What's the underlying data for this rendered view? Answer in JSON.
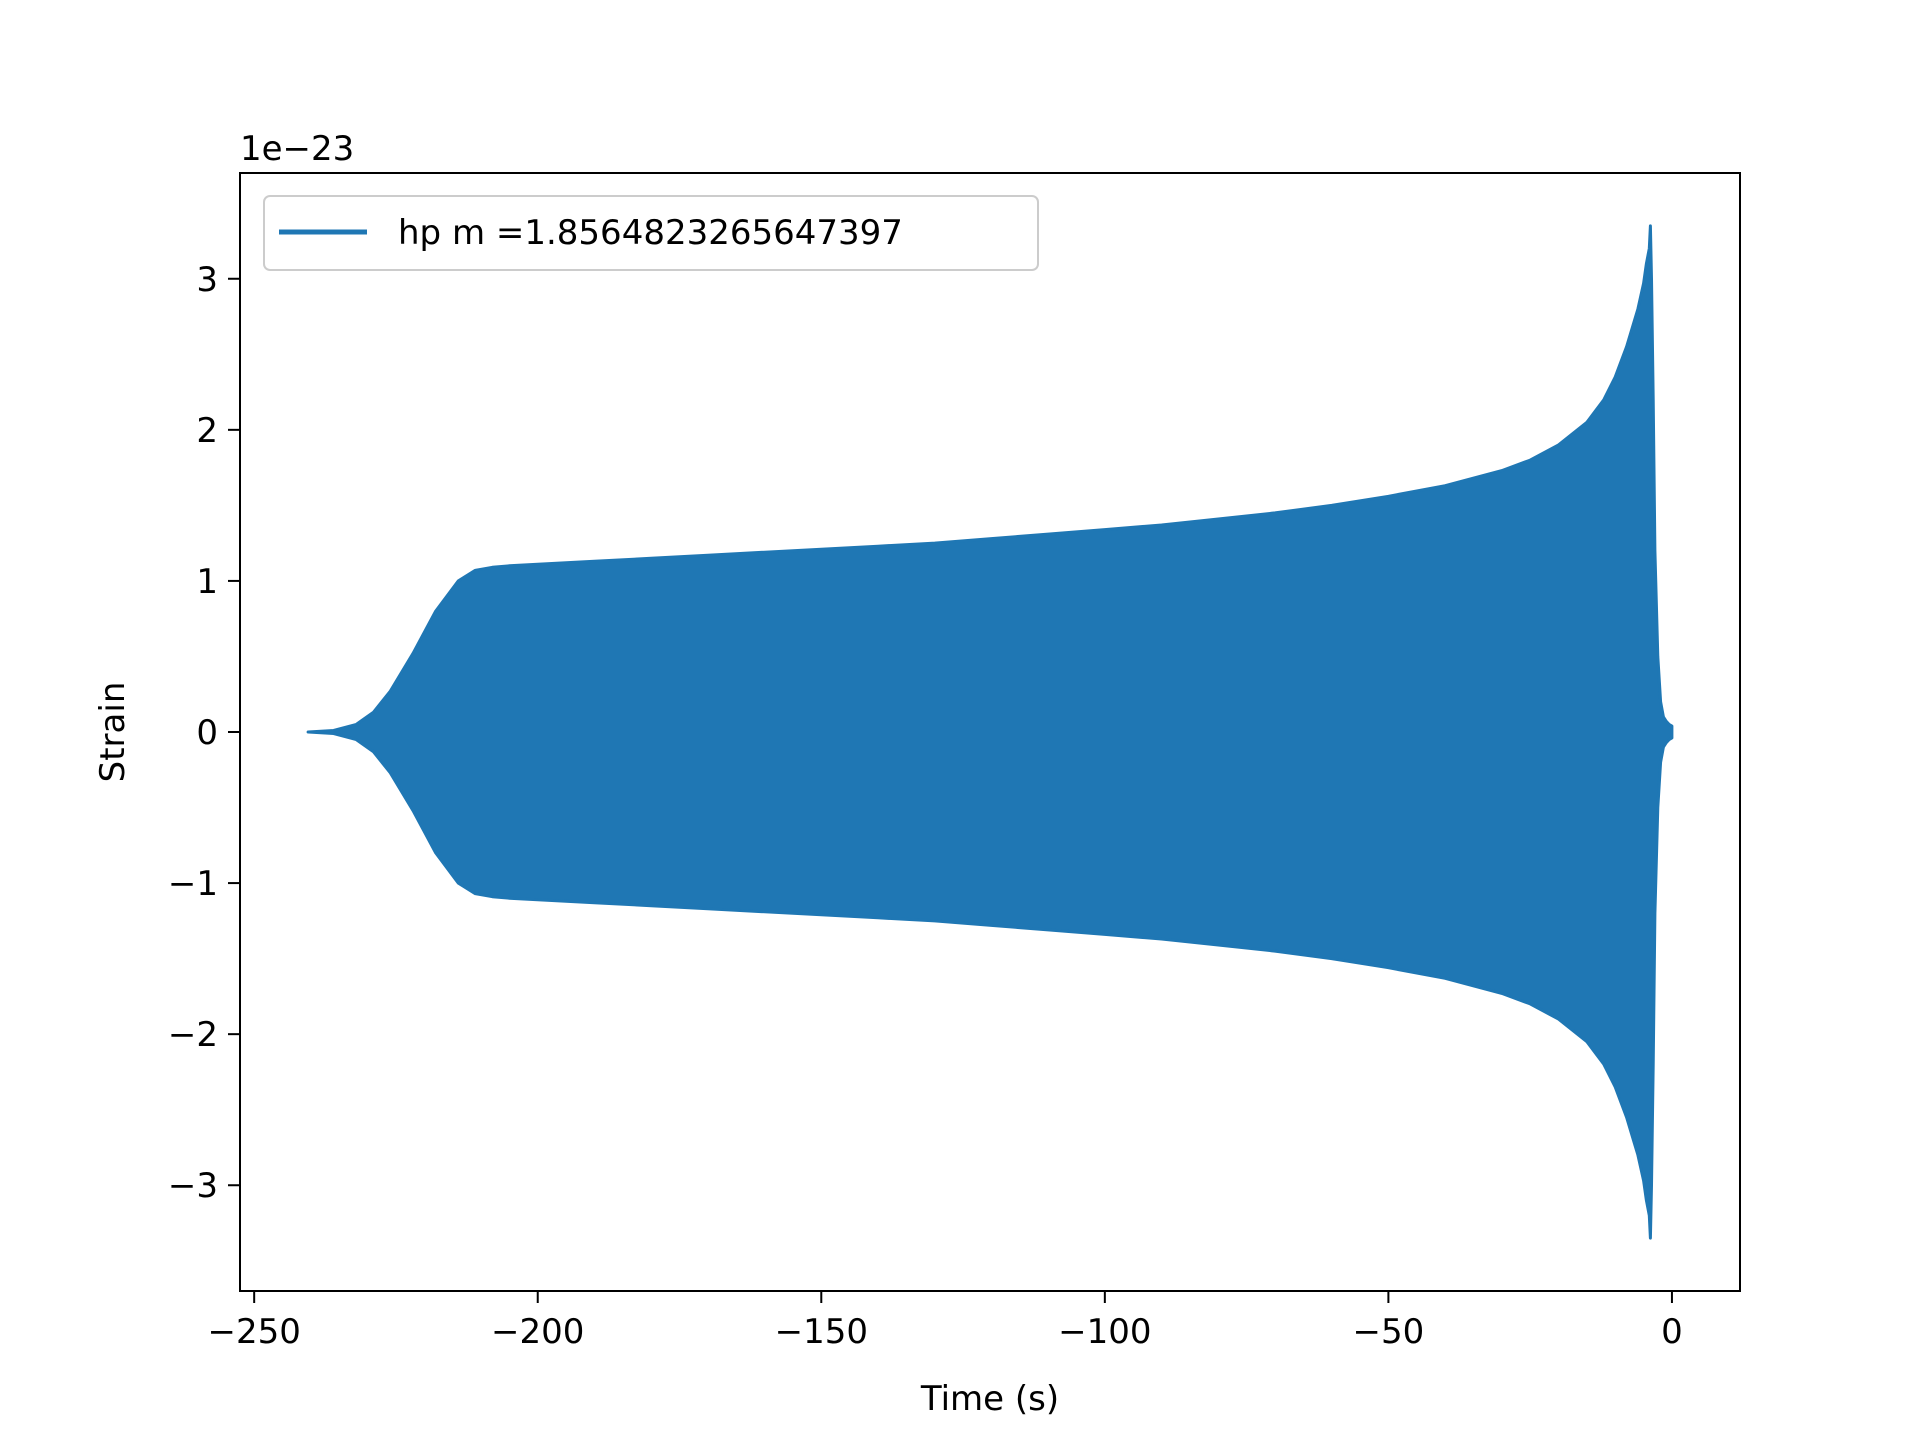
{
  "chart_data": {
    "type": "line",
    "xlabel": "Time (s)",
    "ylabel": "Strain",
    "y_scale_label": "1e−23",
    "y_scale_factor": 1e-23,
    "xlim": [
      -252.5,
      12
    ],
    "ylim": [
      -3.7,
      3.7
    ],
    "x_ticks": [
      -250,
      -200,
      -150,
      -100,
      -50,
      0
    ],
    "x_tick_labels": [
      "−250",
      "−200",
      "−150",
      "−100",
      "−50",
      "0"
    ],
    "y_ticks": [
      -3,
      -2,
      -1,
      0,
      1,
      2,
      3
    ],
    "y_tick_labels": [
      "−3",
      "−2",
      "−1",
      "0",
      "1",
      "2",
      "3"
    ],
    "grid": false,
    "legend_position": "upper-left",
    "series": [
      {
        "name": "hp m =1.8564823265647397",
        "color": "#1f77b4",
        "envelope": {
          "x": [
            -240.5,
            -236,
            -232,
            -229,
            -226,
            -222,
            -218,
            -214,
            -211,
            -208,
            -205,
            -200,
            -190,
            -180,
            -170,
            -160,
            -150,
            -140,
            -130,
            -120,
            -110,
            -100,
            -90,
            -80,
            -70,
            -60,
            -50,
            -40,
            -30,
            -25,
            -20,
            -15,
            -12,
            -10,
            -8,
            -6,
            -5,
            -4.5,
            -4,
            -3.8,
            -3.6,
            -3.3,
            -3,
            -2.5,
            -2,
            -1.5,
            -1,
            -0.5,
            0
          ],
          "amplitude": [
            0.0,
            0.01,
            0.05,
            0.13,
            0.27,
            0.52,
            0.8,
            1.0,
            1.07,
            1.09,
            1.1,
            1.11,
            1.13,
            1.15,
            1.17,
            1.19,
            1.21,
            1.23,
            1.25,
            1.28,
            1.31,
            1.34,
            1.37,
            1.41,
            1.45,
            1.5,
            1.56,
            1.63,
            1.73,
            1.8,
            1.9,
            2.05,
            2.2,
            2.35,
            2.55,
            2.8,
            2.97,
            3.1,
            3.2,
            3.35,
            3.0,
            2.2,
            1.2,
            0.5,
            0.2,
            0.1,
            0.07,
            0.05,
            0.04
          ]
        }
      }
    ]
  }
}
